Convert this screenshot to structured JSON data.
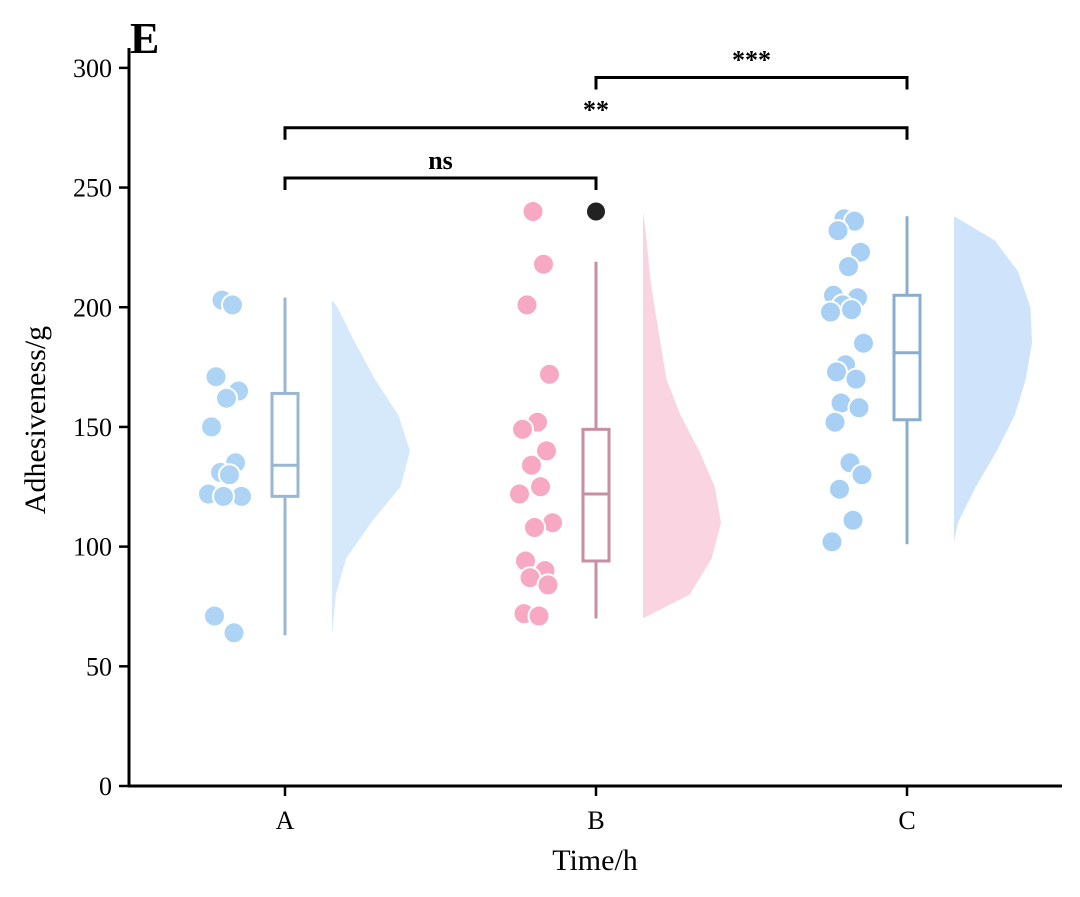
{
  "chart_data": {
    "type": "raincloud",
    "panel_label": "E",
    "xlabel": "Time/h",
    "ylabel": "Adhesiveness/g",
    "ylim": [
      0,
      320
    ],
    "yticks": [
      0,
      50,
      100,
      150,
      200,
      250,
      300
    ],
    "categories": [
      "A",
      "B",
      "C"
    ],
    "groups": [
      {
        "name": "A",
        "point_color": "#aed4f5",
        "box_color": "#9ab7d1",
        "violin_color": "#d6e9fb",
        "box": {
          "min": 63,
          "q1": 121,
          "median": 134,
          "q3": 164,
          "max": 204
        },
        "outliers": [],
        "points": [
          203,
          201,
          171,
          165,
          162,
          150,
          135,
          131,
          130,
          122,
          121,
          121,
          71,
          64
        ],
        "density": [
          [
            63,
            0.0
          ],
          [
            80,
            0.05
          ],
          [
            95,
            0.18
          ],
          [
            110,
            0.5
          ],
          [
            125,
            0.88
          ],
          [
            140,
            1.0
          ],
          [
            155,
            0.85
          ],
          [
            170,
            0.55
          ],
          [
            185,
            0.3
          ],
          [
            200,
            0.07
          ],
          [
            203,
            0.0
          ]
        ]
      },
      {
        "name": "B",
        "point_color": "#f7a9c4",
        "box_color": "#c88ea2",
        "violin_color": "#fbd4e1",
        "box": {
          "min": 70,
          "q1": 94,
          "median": 122,
          "q3": 149,
          "max": 219
        },
        "outliers": [
          240
        ],
        "points": [
          240,
          218,
          201,
          172,
          152,
          149,
          140,
          134,
          125,
          122,
          110,
          108,
          94,
          90,
          87,
          84,
          72,
          71
        ],
        "density": [
          [
            70,
            0.0
          ],
          [
            80,
            0.6
          ],
          [
            95,
            0.88
          ],
          [
            110,
            1.0
          ],
          [
            125,
            0.92
          ],
          [
            140,
            0.72
          ],
          [
            155,
            0.48
          ],
          [
            170,
            0.3
          ],
          [
            190,
            0.2
          ],
          [
            210,
            0.1
          ],
          [
            230,
            0.04
          ],
          [
            240,
            0.0
          ]
        ]
      },
      {
        "name": "C",
        "point_color": "#a8d0f5",
        "box_color": "#8badcc",
        "violin_color": "#cfe4fb",
        "box": {
          "min": 101,
          "q1": 153,
          "median": 181,
          "q3": 205,
          "max": 238
        },
        "outliers": [],
        "points": [
          237,
          236,
          232,
          223,
          217,
          205,
          204,
          201,
          199,
          198,
          185,
          176,
          173,
          170,
          160,
          158,
          152,
          135,
          130,
          124,
          111,
          102
        ],
        "density": [
          [
            102,
            0.0
          ],
          [
            110,
            0.05
          ],
          [
            125,
            0.28
          ],
          [
            140,
            0.55
          ],
          [
            155,
            0.78
          ],
          [
            170,
            0.92
          ],
          [
            185,
            1.0
          ],
          [
            200,
            0.98
          ],
          [
            215,
            0.82
          ],
          [
            228,
            0.52
          ],
          [
            238,
            0.0
          ]
        ]
      }
    ],
    "significance": [
      {
        "from": "A",
        "to": "B",
        "y": 254,
        "label": "ns"
      },
      {
        "from": "A",
        "to": "C",
        "y": 275,
        "label": "**"
      },
      {
        "from": "B",
        "to": "C",
        "y": 296,
        "label": "***"
      }
    ],
    "outlier_color": "#222222",
    "axis_color": "#000000"
  }
}
